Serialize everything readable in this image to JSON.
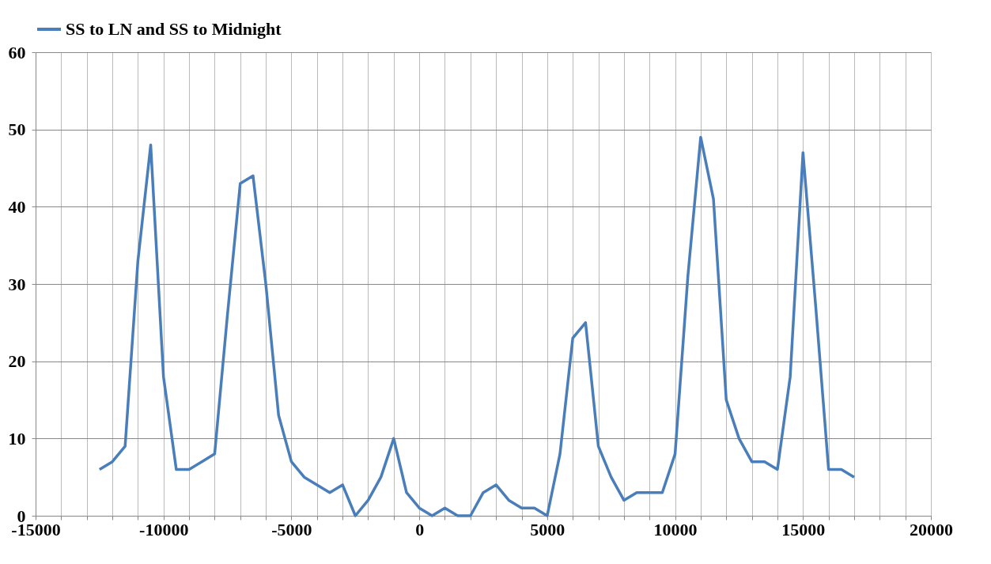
{
  "chart_data": {
    "type": "line",
    "legend": "top",
    "grid": true,
    "marker": "none",
    "line_style": "solid",
    "x": [
      -12500,
      -12000,
      -11500,
      -11000,
      -10500,
      -10000,
      -9500,
      -9000,
      -8500,
      -8000,
      -7500,
      -7000,
      -6500,
      -6000,
      -5500,
      -5000,
      -4500,
      -4000,
      -3500,
      -3000,
      -2500,
      -2000,
      -1500,
      -1000,
      -500,
      0,
      500,
      1000,
      1500,
      2000,
      2500,
      3000,
      3500,
      4000,
      4500,
      5000,
      5500,
      6000,
      6500,
      7000,
      7500,
      8000,
      8500,
      9000,
      9500,
      10000,
      10500,
      11000,
      11500,
      12000,
      12500,
      13000,
      13500,
      14000,
      14500,
      15000,
      15500,
      16000,
      16500,
      17000
    ],
    "series": [
      {
        "name": "SS to LN and SS to Midnight",
        "color": "#4a7ebb",
        "values": [
          6,
          7,
          9,
          33,
          48,
          18,
          6,
          6,
          7,
          8,
          26,
          43,
          44,
          30,
          13,
          7,
          5,
          4,
          3,
          4,
          0,
          2,
          5,
          10,
          3,
          1,
          0,
          1,
          0,
          0,
          3,
          4,
          2,
          1,
          1,
          0,
          8,
          23,
          25,
          9,
          5,
          2,
          3,
          3,
          3,
          8,
          31,
          49,
          41,
          15,
          10,
          7,
          7,
          6,
          18,
          47,
          27,
          6,
          6,
          5
        ]
      }
    ],
    "xlim": [
      -15000,
      20000
    ],
    "ylim": [
      0,
      60
    ],
    "yticks": [
      0,
      10,
      20,
      30,
      40,
      50,
      60
    ],
    "xticks": [
      -15000,
      {
        "value": -14000,
        "label": null
      },
      {
        "value": -13000,
        "label": null
      },
      {
        "value": -12000,
        "label": null
      },
      {
        "value": -11000,
        "label": null
      },
      -10000,
      {
        "value": -9000,
        "label": null
      },
      {
        "value": -8000,
        "label": null
      },
      {
        "value": -7000,
        "label": null
      },
      {
        "value": -6000,
        "label": null
      },
      -5000,
      {
        "value": -4000,
        "label": null
      },
      {
        "value": -3000,
        "label": null
      },
      {
        "value": -2000,
        "label": null
      },
      {
        "value": -1000,
        "label": null
      },
      0,
      {
        "value": 1000,
        "label": null
      },
      {
        "value": 2000,
        "label": null
      },
      {
        "value": 3000,
        "label": null
      },
      {
        "value": 4000,
        "label": null
      },
      5000,
      {
        "value": 6000,
        "label": null
      },
      {
        "value": 7000,
        "label": null
      },
      {
        "value": 8000,
        "label": null
      },
      {
        "value": 9000,
        "label": null
      },
      10000,
      {
        "value": 11000,
        "label": null
      },
      {
        "value": 12000,
        "label": null
      },
      {
        "value": 13000,
        "label": null
      },
      {
        "value": 14000,
        "label": null
      },
      15000,
      {
        "value": 16000,
        "label": null
      },
      {
        "value": 17000,
        "label": null
      },
      {
        "value": 18000,
        "label": null
      },
      {
        "value": 19000,
        "label": null
      },
      20000
    ]
  }
}
